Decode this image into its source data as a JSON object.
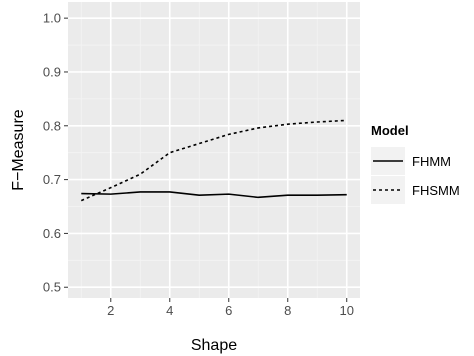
{
  "chart_data": {
    "type": "line",
    "xlabel": "Shape",
    "ylabel": "F−Measure",
    "xlim": [
      0.55,
      10.45
    ],
    "ylim": [
      0.48,
      1.03
    ],
    "xticks": [
      2,
      4,
      6,
      8,
      10
    ],
    "xtick_labels": [
      "2",
      "4",
      "6",
      "8",
      "10"
    ],
    "yticks": [
      0.5,
      0.6,
      0.7,
      0.8,
      0.9,
      1.0
    ],
    "ytick_labels": [
      "0.5",
      "0.6",
      "0.7",
      "0.8",
      "0.9",
      "1.0"
    ],
    "grid": true,
    "legend": {
      "title": "Model",
      "position": "right",
      "entries": [
        {
          "label": "FHMM",
          "style": "solid"
        },
        {
          "label": "FHSMM",
          "style": "dashed"
        }
      ]
    },
    "x": [
      1,
      2,
      3,
      4,
      5,
      6,
      7,
      8,
      9,
      10
    ],
    "series": [
      {
        "name": "FHMM",
        "style": "solid",
        "values": [
          0.674,
          0.673,
          0.677,
          0.677,
          0.671,
          0.673,
          0.667,
          0.671,
          0.671,
          0.672
        ]
      },
      {
        "name": "FHSMM",
        "style": "dashed",
        "values": [
          0.661,
          0.685,
          0.71,
          0.75,
          0.767,
          0.784,
          0.796,
          0.803,
          0.807,
          0.81
        ]
      }
    ],
    "colors": {
      "panel": "#ebebeb",
      "grid_major": "#ffffff",
      "grid_minor": "#f4f4f4",
      "line": "#000000"
    }
  }
}
